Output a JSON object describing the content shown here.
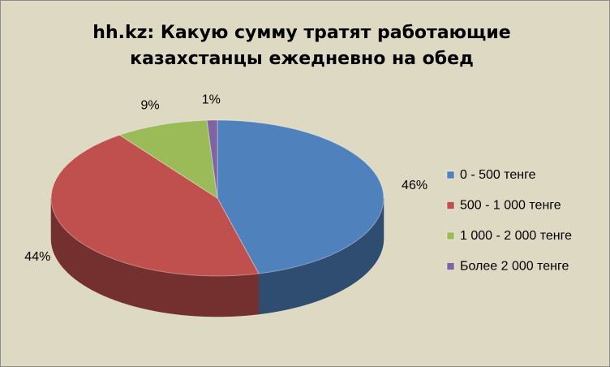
{
  "chart_data": {
    "type": "pie3d",
    "title": [
      "hh.kz: Какую сумму тратят работающие",
      "казахстанцы  ежедневно на обед"
    ],
    "categories": [
      "0 - 500 тенге",
      "500 - 1 000 тенге",
      "1 000 - 2 000 тенге",
      "Более 2 000 тенге"
    ],
    "values": [
      46,
      44,
      9,
      1
    ],
    "value_labels": [
      "46%",
      "44%",
      "9%",
      "1%"
    ],
    "colors": [
      "#4f81bd",
      "#c0504d",
      "#9bbb59",
      "#8064a2"
    ],
    "legend": "right"
  }
}
